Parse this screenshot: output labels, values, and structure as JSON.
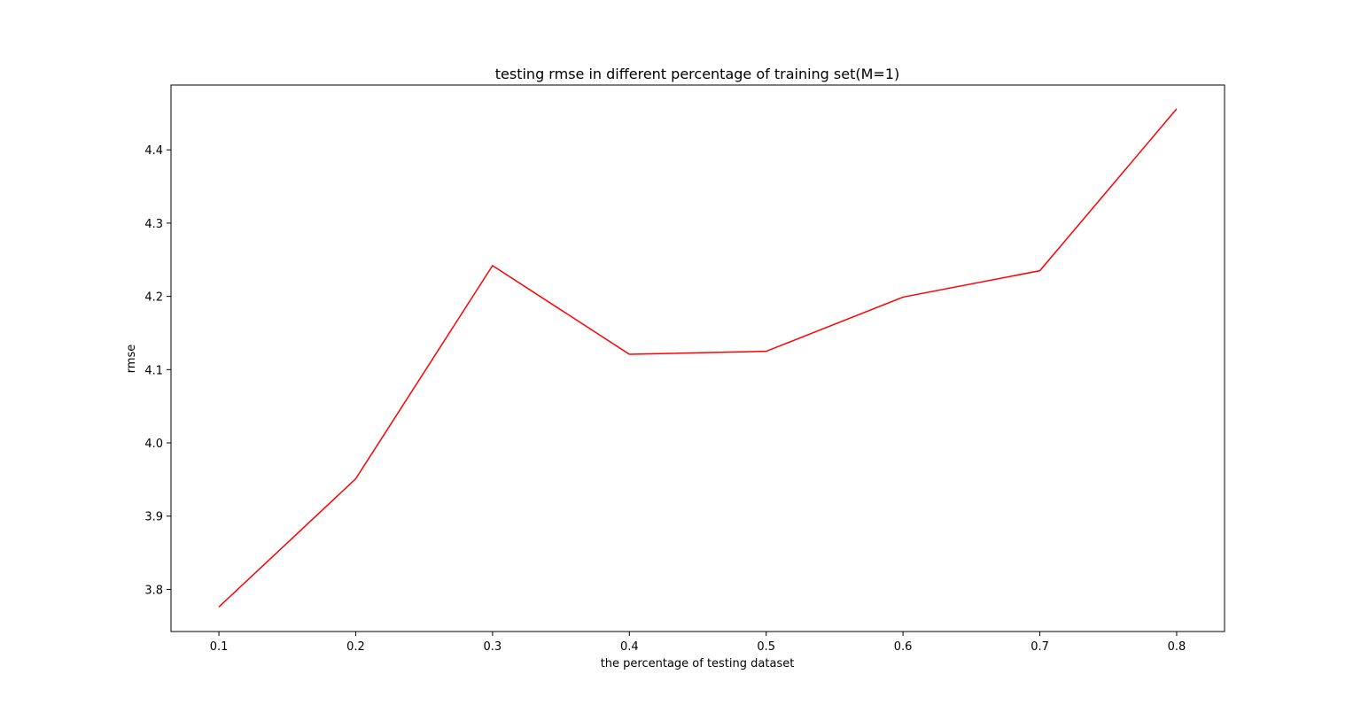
{
  "chart_data": {
    "type": "line",
    "title": "testing rmse in different percentage of training set(M=1)",
    "xlabel": "the percentage of testing dataset",
    "ylabel": "rmse",
    "x": [
      0.1,
      0.2,
      0.3,
      0.4,
      0.5,
      0.6,
      0.7,
      0.8
    ],
    "x_ticks": [
      "0.1",
      "0.2",
      "0.3",
      "0.4",
      "0.5",
      "0.6",
      "0.7",
      "0.8"
    ],
    "y_ticks": [
      "3.8",
      "3.9",
      "4.0",
      "4.1",
      "4.2",
      "4.3",
      "4.4"
    ],
    "xlim": [
      0.065,
      0.835
    ],
    "ylim": [
      3.7425,
      4.4885
    ],
    "series": [
      {
        "color": "#ff0000",
        "values": [
          3.776,
          3.951,
          4.242,
          4.121,
          4.125,
          4.199,
          4.235,
          4.456
        ]
      }
    ],
    "grid": false,
    "legend": "none"
  }
}
